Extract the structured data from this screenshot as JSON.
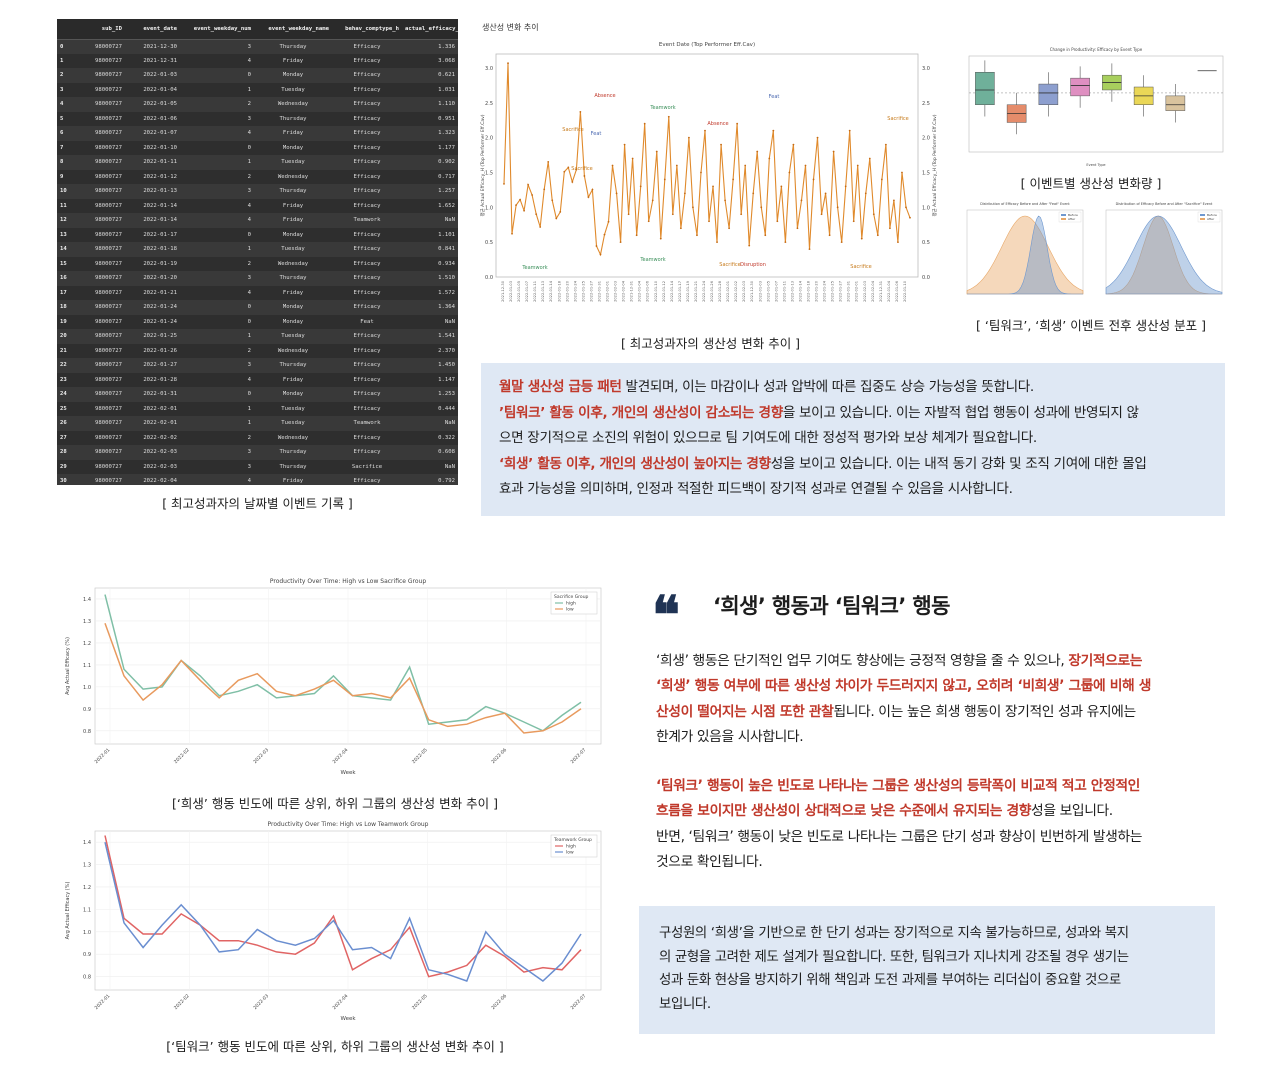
{
  "table": {
    "columns": [
      "",
      "sub_ID",
      "event_date",
      "event_weekday_num",
      "event_weekday_name",
      "behav_comptype_h",
      "actual_efficacy_h"
    ],
    "rows": [
      [
        "0",
        "98000727",
        "2021-12-30",
        "3",
        "Thursday",
        "Efficacy",
        "1.336"
      ],
      [
        "1",
        "98000727",
        "2021-12-31",
        "4",
        "Friday",
        "Efficacy",
        "3.068"
      ],
      [
        "2",
        "98000727",
        "2022-01-03",
        "0",
        "Monday",
        "Efficacy",
        "0.621"
      ],
      [
        "3",
        "98000727",
        "2022-01-04",
        "1",
        "Tuesday",
        "Efficacy",
        "1.031"
      ],
      [
        "4",
        "98000727",
        "2022-01-05",
        "2",
        "Wednesday",
        "Efficacy",
        "1.110"
      ],
      [
        "5",
        "98000727",
        "2022-01-06",
        "3",
        "Thursday",
        "Efficacy",
        "0.951"
      ],
      [
        "6",
        "98000727",
        "2022-01-07",
        "4",
        "Friday",
        "Efficacy",
        "1.323"
      ],
      [
        "7",
        "98000727",
        "2022-01-10",
        "0",
        "Monday",
        "Efficacy",
        "1.177"
      ],
      [
        "8",
        "98000727",
        "2022-01-11",
        "1",
        "Tuesday",
        "Efficacy",
        "0.902"
      ],
      [
        "9",
        "98000727",
        "2022-01-12",
        "2",
        "Wednesday",
        "Efficacy",
        "0.717"
      ],
      [
        "10",
        "98000727",
        "2022-01-13",
        "3",
        "Thursday",
        "Efficacy",
        "1.257"
      ],
      [
        "11",
        "98000727",
        "2022-01-14",
        "4",
        "Friday",
        "Efficacy",
        "1.652"
      ],
      [
        "12",
        "98000727",
        "2022-01-14",
        "4",
        "Friday",
        "Teamwork",
        "NaN"
      ],
      [
        "13",
        "98000727",
        "2022-01-17",
        "0",
        "Monday",
        "Efficacy",
        "1.101"
      ],
      [
        "14",
        "98000727",
        "2022-01-18",
        "1",
        "Tuesday",
        "Efficacy",
        "0.841"
      ],
      [
        "15",
        "98000727",
        "2022-01-19",
        "2",
        "Wednesday",
        "Efficacy",
        "0.934"
      ],
      [
        "16",
        "98000727",
        "2022-01-20",
        "3",
        "Thursday",
        "Efficacy",
        "1.510"
      ],
      [
        "17",
        "98000727",
        "2022-01-21",
        "4",
        "Friday",
        "Efficacy",
        "1.572"
      ],
      [
        "18",
        "98000727",
        "2022-01-24",
        "0",
        "Monday",
        "Efficacy",
        "1.364"
      ],
      [
        "19",
        "98000727",
        "2022-01-24",
        "0",
        "Monday",
        "Feat",
        "NaN"
      ],
      [
        "20",
        "98000727",
        "2022-01-25",
        "1",
        "Tuesday",
        "Efficacy",
        "1.541"
      ],
      [
        "21",
        "98000727",
        "2022-01-26",
        "2",
        "Wednesday",
        "Efficacy",
        "2.370"
      ],
      [
        "22",
        "98000727",
        "2022-01-27",
        "3",
        "Thursday",
        "Efficacy",
        "1.450"
      ],
      [
        "23",
        "98000727",
        "2022-01-28",
        "4",
        "Friday",
        "Efficacy",
        "1.147"
      ],
      [
        "24",
        "98000727",
        "2022-01-31",
        "0",
        "Monday",
        "Efficacy",
        "1.253"
      ],
      [
        "25",
        "98000727",
        "2022-02-01",
        "1",
        "Tuesday",
        "Efficacy",
        "0.444"
      ],
      [
        "26",
        "98000727",
        "2022-02-01",
        "1",
        "Tuesday",
        "Teamwork",
        "NaN"
      ],
      [
        "27",
        "98000727",
        "2022-02-02",
        "2",
        "Wednesday",
        "Efficacy",
        "0.322"
      ],
      [
        "28",
        "98000727",
        "2022-02-03",
        "3",
        "Thursday",
        "Efficacy",
        "0.608"
      ],
      [
        "29",
        "98000727",
        "2022-02-03",
        "3",
        "Thursday",
        "Sacrifice",
        "NaN"
      ],
      [
        "30",
        "98000727",
        "2022-02-04",
        "4",
        "Friday",
        "Efficacy",
        "0.792"
      ]
    ]
  },
  "captions": {
    "table": "[ 최고성과자의 날짜별 이벤트 기록 ]",
    "top_line": "[ 최고성과자의 생산성 변화 추이 ]",
    "boxplot": "[ 이벤트별 생산성 변화량 ]",
    "density": "[ ‘팀워크’, ‘희생’ 이벤트 전후 생산성 분포 ]",
    "sacrifice_chart": "[‘희생’ 행동 빈도에 따른 상위, 하위 그룹의 생산성 변화 추이 ]",
    "teamwork_chart": "[‘팀워크’ 행동 빈도에 따른 상위, 하위 그룹의 생산성 변화 추이 ]"
  },
  "chart_title_kr": "생산성 변화 추이",
  "box1": {
    "l1_red": "월말 생산성 급등 패턴",
    "l1_rest": " 발견되며, 이는 마감이나 성과 압박에 따른 집중도 상승 가능성을 뜻합니다.",
    "l2_red": "’팀워크’ 활동 이후, 개인의 생산성이 감소되는 경향",
    "l2_rest": "을 보이고 있습니다. 이는 자발적 협업 행동이 성과에 반영되지 않",
    "l3": "으면 장기적으로 소진의 위험이 있으므로 팀 기여도에 대한 정성적 평가와 보상 체계가 필요합니다.",
    "l4_red": "‘희생’ 활동 이후, 개인의 생산성이 높아지는 경향",
    "l4_rest": "성을 보이고 있습니다. 이는 내적 동기 강화 및 조직 기여에 대한 몰입",
    "l5": "효과 가능성을 의미하며, 인정과 적절한 피드백이 장기적 성과로 연결될 수 있음을 시사합니다."
  },
  "section": {
    "quote": "❝",
    "heading": "‘희생’ 행동과 ‘팀워크’ 행동",
    "p1_l1_a": "‘희생’ 행동은 단기적인 업무 기여도 향상에는 긍정적 영향을 줄 수 있으나, ",
    "p1_l1_red": "장기적으로는",
    "p1_l2_red": "‘희생’ 행동 여부에 따른 생산성 차이가 두드러지지 않고, 오히려 ‘비희생’ 그룹에 비해 생",
    "p1_l3_red": "산성이 떨어지는 시점 또한 관찰",
    "p1_l3_rest": "됩니다. 이는 높은 희생 행동이 장기적인 성과 유지에는",
    "p1_l4": "한계가 있음을 시사합니다.",
    "p2_l1_red": "‘팀워크’ 행동이 높은 빈도로 나타나는 그룹은 생산성의 등락폭이 비교적 적고 안정적인",
    "p2_l2_red": "흐름을 보이지만 생산성이 상대적으로 낮은 수준에서 유지되는 경향",
    "p2_l2_rest": "성을 보입니다.",
    "p2_l3": "반면, ‘팀워크’ 행동이 낮은 빈도로 나타나는 그룹은 단기 성과 향상이 빈번하게 발생하는",
    "p2_l4": "것으로 확인됩니다."
  },
  "box2": {
    "l1": "구성원의 ‘희생’을 기반으로 한 단기 성과는 장기적으로 지속 불가능하므로, 성과와 복지",
    "l2": "의 균형을 고려한 제도 설계가 필요합니다. 또한, 팀워크가 지나치게 강조될 경우 생기는",
    "l3": "성과 둔화 현상을 방지하기 위해 책임과 도전 과제를 부여하는 리더십이 중요할 것으로",
    "l4": "보입니다."
  },
  "colors": {
    "accent_red": "#c0392b",
    "box_bg": "#dfe8f4",
    "quote_navy": "#1f3354",
    "line_orange": "#e08a2c",
    "high_green": "#7fbfa6",
    "low_orange": "#e89a5e",
    "tw_high": "#e06464",
    "tw_low": "#6a8ed0"
  },
  "chart_data": [
    {
      "type": "line",
      "title": "Event Date (Top Performer Eff.Cav)",
      "ylabel": "평균 Actual Efficacy_H (Top Performer Eff.Cav)",
      "ylim": [
        0,
        3.2
      ],
      "yticks": [
        "0.0",
        "0.5",
        "1.0",
        "1.5",
        "2.0",
        "2.5",
        "3.0"
      ],
      "values": [
        1.336,
        3.068,
        0.621,
        1.031,
        1.11,
        0.951,
        1.323,
        1.177,
        0.902,
        0.717,
        1.257,
        1.652,
        1.101,
        0.841,
        0.934,
        1.51,
        1.572,
        1.364,
        1.541,
        2.37,
        1.45,
        1.147,
        1.253,
        0.444,
        0.322,
        0.608,
        0.792,
        1.6,
        1.2,
        0.5,
        1.9,
        0.9,
        1.7,
        0.6,
        1.3,
        2.2,
        0.8,
        1.1,
        1.8,
        0.55,
        1.4,
        2.3,
        0.9,
        1.6,
        0.7,
        1.2,
        2.0,
        1.0,
        0.6,
        1.5,
        2.1,
        0.8,
        1.3,
        0.5,
        1.9,
        1.1,
        0.7,
        1.4,
        2.2,
        0.9,
        1.6,
        0.45,
        1.2,
        1.8,
        1.0,
        0.6,
        1.7,
        2.1,
        0.8,
        1.3,
        0.5,
        1.5,
        1.9,
        0.7,
        1.1,
        1.6,
        0.4,
        1.4,
        2.0,
        0.9,
        1.2,
        0.6,
        1.8,
        1.0,
        0.5,
        1.3,
        2.1,
        0.8,
        1.6,
        0.55,
        1.2,
        1.7,
        0.9,
        0.6,
        1.4,
        1.9,
        0.7,
        1.1,
        0.5,
        1.5,
        1.0,
        0.85
      ],
      "annotations": [
        "Absence",
        "Teamwork",
        "Feat",
        "Absence",
        "Sacrifice",
        "Teamwork",
        "Feat",
        "Sacrifice",
        "Teamwork",
        "Sacrifice",
        "Disruption",
        "Sacrifice",
        "Sacrifice"
      ]
    },
    {
      "type": "box",
      "title": "Change in Productivity: Efficacy by Event Type",
      "xlabel": "Event Type",
      "series": [
        {
          "q1": 0.52,
          "med": 0.62,
          "q3": 0.74,
          "color": "#6fb09a"
        },
        {
          "q1": 0.4,
          "med": 0.46,
          "q3": 0.52,
          "color": "#e58c6b"
        },
        {
          "q1": 0.52,
          "med": 0.6,
          "q3": 0.66,
          "color": "#8d9fcf"
        },
        {
          "q1": 0.58,
          "med": 0.65,
          "q3": 0.7,
          "color": "#df8fc1"
        },
        {
          "q1": 0.62,
          "med": 0.67,
          "q3": 0.72,
          "color": "#a8cf5d"
        },
        {
          "q1": 0.52,
          "med": 0.58,
          "q3": 0.64,
          "color": "#ead757"
        },
        {
          "q1": 0.48,
          "med": 0.52,
          "q3": 0.58,
          "color": "#d9c39e"
        },
        {
          "q1": 0.75,
          "med": 0.75,
          "q3": 0.75,
          "color": "#999999"
        }
      ]
    },
    {
      "type": "area",
      "title": "Distribution of Efficacy Before and After \"Feat\" Event",
      "legend": [
        "Before",
        "After"
      ]
    },
    {
      "type": "area",
      "title": "Distribution of Efficacy Before and After \"Sacrifice\" Event",
      "legend": [
        "Before",
        "After"
      ]
    },
    {
      "type": "line",
      "title": "Productivity Over Time: High vs Low Sacrifice Group",
      "xlabel": "Week",
      "ylabel": "Avg Actual Efficacy (%)",
      "ylim": [
        0.74,
        1.45
      ],
      "yticks": [
        "0.8",
        "0.9",
        "1.0",
        "1.1",
        "1.2",
        "1.3",
        "1.4"
      ],
      "xticks": [
        "2022-01",
        "2022-02",
        "2022-03",
        "2022-04",
        "2022-05",
        "2022-06",
        "2022-07"
      ],
      "legend_title": "Sacrifice Group",
      "series": [
        {
          "name": "high",
          "values": [
            1.42,
            1.08,
            0.99,
            1.0,
            1.12,
            1.05,
            0.96,
            0.98,
            1.01,
            0.95,
            0.96,
            0.97,
            1.05,
            0.96,
            0.95,
            0.94,
            1.09,
            0.83,
            0.84,
            0.85,
            0.91,
            0.88,
            0.84,
            0.8,
            0.87,
            0.93
          ]
        },
        {
          "name": "low",
          "values": [
            1.29,
            1.05,
            0.94,
            1.01,
            1.12,
            1.03,
            0.95,
            1.03,
            1.06,
            0.98,
            0.96,
            0.99,
            1.03,
            0.96,
            0.97,
            0.95,
            1.04,
            0.85,
            0.82,
            0.83,
            0.86,
            0.88,
            0.79,
            0.8,
            0.84,
            0.9
          ]
        }
      ]
    },
    {
      "type": "line",
      "title": "Productivity Over Time: High vs Low Teamwork Group",
      "xlabel": "Week",
      "ylabel": "Avg Actual Efficacy (%)",
      "ylim": [
        0.74,
        1.45
      ],
      "yticks": [
        "0.8",
        "0.9",
        "1.0",
        "1.1",
        "1.2",
        "1.3",
        "1.4"
      ],
      "xticks": [
        "2022-01",
        "2022-02",
        "2022-03",
        "2022-04",
        "2022-05",
        "2022-06",
        "2022-07"
      ],
      "legend_title": "Teamwork Group",
      "series": [
        {
          "name": "high",
          "values": [
            1.43,
            1.06,
            0.99,
            0.99,
            1.08,
            1.03,
            0.96,
            0.96,
            0.94,
            0.91,
            0.9,
            0.95,
            1.07,
            0.83,
            0.88,
            0.92,
            1.02,
            0.8,
            0.82,
            0.85,
            0.94,
            0.89,
            0.82,
            0.84,
            0.83,
            0.92
          ]
        },
        {
          "name": "low",
          "values": [
            1.4,
            1.04,
            0.93,
            1.03,
            1.12,
            1.03,
            0.91,
            0.92,
            1.01,
            0.96,
            0.94,
            0.97,
            1.05,
            0.92,
            0.93,
            0.88,
            1.06,
            0.83,
            0.81,
            0.78,
            1.0,
            0.9,
            0.84,
            0.78,
            0.86,
            0.99
          ]
        }
      ]
    }
  ]
}
